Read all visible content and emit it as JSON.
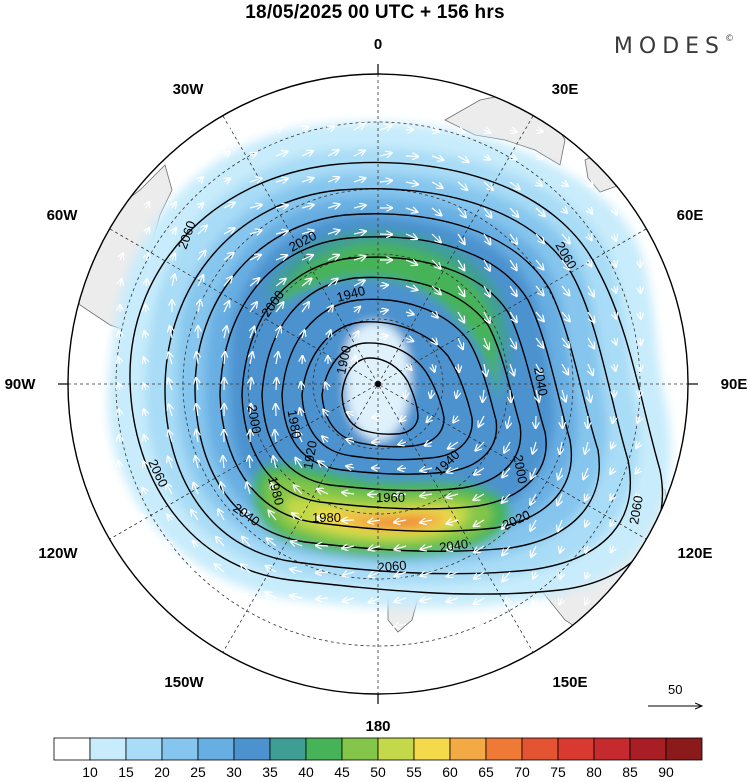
{
  "header": {
    "title": "18/05/2025  00 UTC  + 156 hrs"
  },
  "logo": {
    "text": "MODES",
    "mark": "©"
  },
  "map": {
    "projection": "south-polar-stereographic",
    "longitude_labels": [
      {
        "key": "0",
        "text": "0"
      },
      {
        "key": "30E",
        "text": "30E"
      },
      {
        "key": "60E",
        "text": "60E"
      },
      {
        "key": "90E",
        "text": "90E"
      },
      {
        "key": "120E",
        "text": "120E"
      },
      {
        "key": "150E",
        "text": "150E"
      },
      {
        "key": "180",
        "text": "180"
      },
      {
        "key": "150W",
        "text": "150W"
      },
      {
        "key": "120W",
        "text": "120W"
      },
      {
        "key": "90W",
        "text": "90W"
      },
      {
        "key": "60W",
        "text": "60W"
      },
      {
        "key": "30W",
        "text": "30W"
      }
    ],
    "contour_labels": [
      "1900",
      "1920",
      "1940",
      "1960",
      "1980",
      "2000",
      "2020",
      "2040",
      "2060"
    ],
    "reference_vector": {
      "label": "50"
    },
    "colors": {
      "land": "#ececec",
      "coast": "#6e6e6e",
      "contour": "#000000",
      "wind_arrow": "#ffffff"
    }
  },
  "colorbar": {
    "ticks": [
      "10",
      "15",
      "20",
      "25",
      "30",
      "35",
      "40",
      "45",
      "50",
      "55",
      "60",
      "65",
      "70",
      "75",
      "80",
      "85",
      "90"
    ],
    "colors": [
      "#ffffff",
      "#c8ecfb",
      "#a9dcf6",
      "#86c6ee",
      "#67aee2",
      "#4c92cf",
      "#3f9e94",
      "#47b358",
      "#84c64a",
      "#c3d94a",
      "#f4d94a",
      "#f3aa45",
      "#ee7a35",
      "#e45433",
      "#d83a32",
      "#c52a2f",
      "#a81e24",
      "#8b1a1a"
    ]
  }
}
